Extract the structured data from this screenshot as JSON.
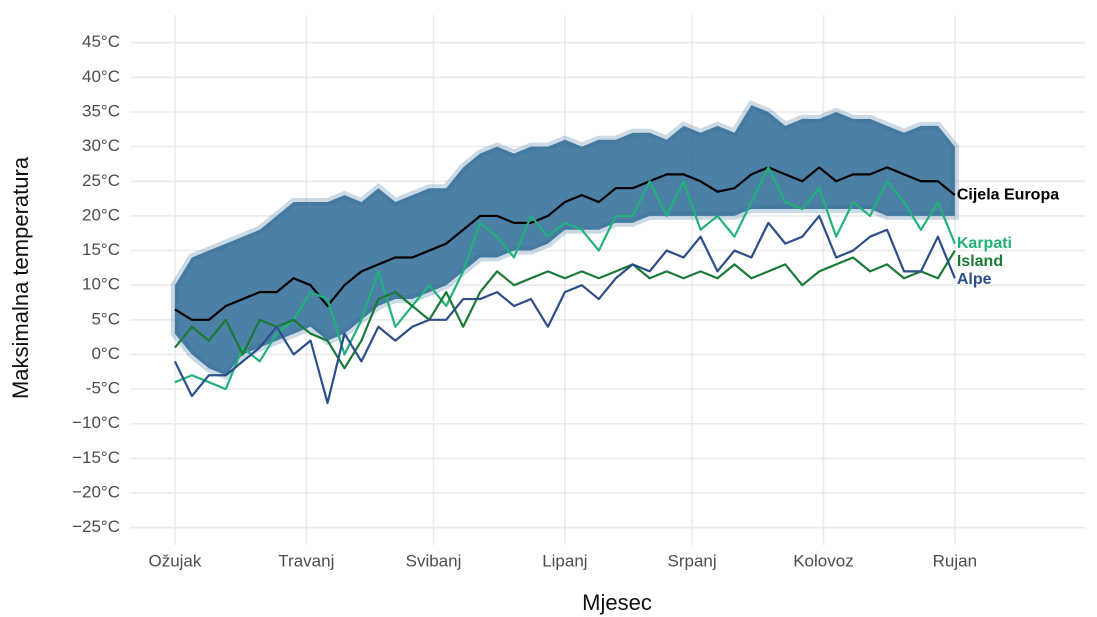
{
  "chart_data": {
    "type": "line",
    "x_title": "Mjesec",
    "y_title": "Maksimalna temperatura",
    "x": [
      0,
      4,
      8,
      12,
      16,
      20,
      24,
      28,
      32,
      36,
      40,
      44,
      48,
      52,
      56,
      60,
      64,
      68,
      72,
      76,
      80,
      84,
      88,
      92,
      96,
      100,
      104,
      108,
      112,
      116,
      120,
      124,
      128,
      132,
      136,
      140,
      144,
      148,
      152,
      156,
      160,
      164,
      168,
      172,
      176,
      180,
      184
    ],
    "xlim": [
      -10.6,
      214.7
    ],
    "xticks": [
      {
        "value": 0,
        "label": "Ožujak"
      },
      {
        "value": 31,
        "label": "Travanj"
      },
      {
        "value": 61,
        "label": "Svibanj"
      },
      {
        "value": 92,
        "label": "Lipanj"
      },
      {
        "value": 122,
        "label": "Srpanj"
      },
      {
        "value": 153,
        "label": "Kolovoz"
      },
      {
        "value": 184,
        "label": "Rujan"
      }
    ],
    "ylim": [
      -27.5,
      49
    ],
    "yticks": [
      {
        "value": -25,
        "label": "−25°C"
      },
      {
        "value": -20,
        "label": "−20°C"
      },
      {
        "value": -15,
        "label": "−15°C"
      },
      {
        "value": -10,
        "label": "−10°C"
      },
      {
        "value": -5,
        "label": "-5°C"
      },
      {
        "value": 0,
        "label": "0°C"
      },
      {
        "value": 5,
        "label": "5°C"
      },
      {
        "value": 10,
        "label": "10°C"
      },
      {
        "value": 15,
        "label": "15°C"
      },
      {
        "value": 20,
        "label": "20°C"
      },
      {
        "value": 25,
        "label": "25°C"
      },
      {
        "value": 30,
        "label": "30°C"
      },
      {
        "value": 35,
        "label": "35°C"
      },
      {
        "value": 40,
        "label": "40°C"
      },
      {
        "value": 45,
        "label": "45°C"
      }
    ],
    "grid": true,
    "band": {
      "color": "#2e6a97",
      "upper": [
        10,
        14,
        15,
        16,
        17,
        18,
        20,
        22,
        22,
        22,
        23,
        22,
        24,
        22,
        23,
        24,
        24,
        27,
        29,
        30,
        29,
        30,
        30,
        31,
        30,
        31,
        31,
        32,
        32,
        31,
        33,
        32,
        33,
        32,
        36,
        35,
        33,
        34,
        34,
        35,
        34,
        34,
        33,
        32,
        33,
        33,
        30
      ],
      "lower": [
        3,
        0,
        -2,
        -3,
        0,
        1,
        2,
        3,
        4,
        2,
        3,
        5,
        7,
        8,
        8,
        9,
        10,
        12,
        14,
        14,
        15,
        15,
        16,
        18,
        18,
        18,
        19,
        19,
        20,
        20,
        20,
        20,
        20,
        20,
        21,
        21,
        21,
        21,
        21,
        21,
        21,
        21,
        20,
        20,
        20,
        20,
        20
      ]
    },
    "series": [
      {
        "name": "Cijela Europa",
        "color": "#000000",
        "values": [
          6.5,
          5,
          5,
          7,
          8,
          9,
          9,
          11,
          10,
          7,
          10,
          12,
          13,
          14,
          14,
          15,
          16,
          18,
          20,
          20,
          19,
          19,
          20,
          22,
          23,
          22,
          24,
          24,
          25,
          26,
          26,
          25,
          23.5,
          24,
          26,
          27,
          26,
          25,
          27,
          25,
          26,
          26,
          27,
          26,
          25,
          25,
          23
        ]
      },
      {
        "name": "Karpati",
        "color": "#20b27a",
        "values": [
          -4,
          -3,
          -4,
          -5,
          1,
          -1,
          3,
          5,
          9,
          8,
          0,
          5,
          12,
          4,
          7,
          10,
          7,
          12,
          19,
          17,
          14,
          20,
          17,
          19,
          18,
          15,
          20,
          20,
          25,
          20,
          25,
          18,
          20,
          17,
          22,
          27,
          22,
          21,
          24,
          17,
          22,
          20,
          25,
          22,
          18,
          22,
          16
        ]
      },
      {
        "name": "Island",
        "color": "#1a7a36",
        "values": [
          1,
          4,
          2,
          5,
          0,
          5,
          4,
          5,
          3,
          2,
          -2,
          2,
          8,
          9,
          7,
          5,
          9,
          4,
          9,
          12,
          10,
          11,
          12,
          11,
          12,
          11,
          12,
          13,
          11,
          12,
          11,
          12,
          11,
          13,
          11,
          12,
          13,
          10,
          12,
          13,
          14,
          12,
          13,
          11,
          12,
          11,
          15
        ]
      },
      {
        "name": "Alpe",
        "color": "#2c4f8a",
        "values": [
          -1,
          -6,
          -3,
          -3,
          -1,
          1,
          4,
          0,
          2,
          -7,
          3,
          -1,
          4,
          2,
          4,
          5,
          5,
          8,
          8,
          9,
          7,
          8,
          4,
          9,
          10,
          8,
          11,
          13,
          12,
          15,
          14,
          17,
          12,
          15,
          14,
          19,
          16,
          17,
          20,
          14,
          15,
          17,
          18,
          12,
          12,
          17,
          11
        ]
      }
    ]
  }
}
